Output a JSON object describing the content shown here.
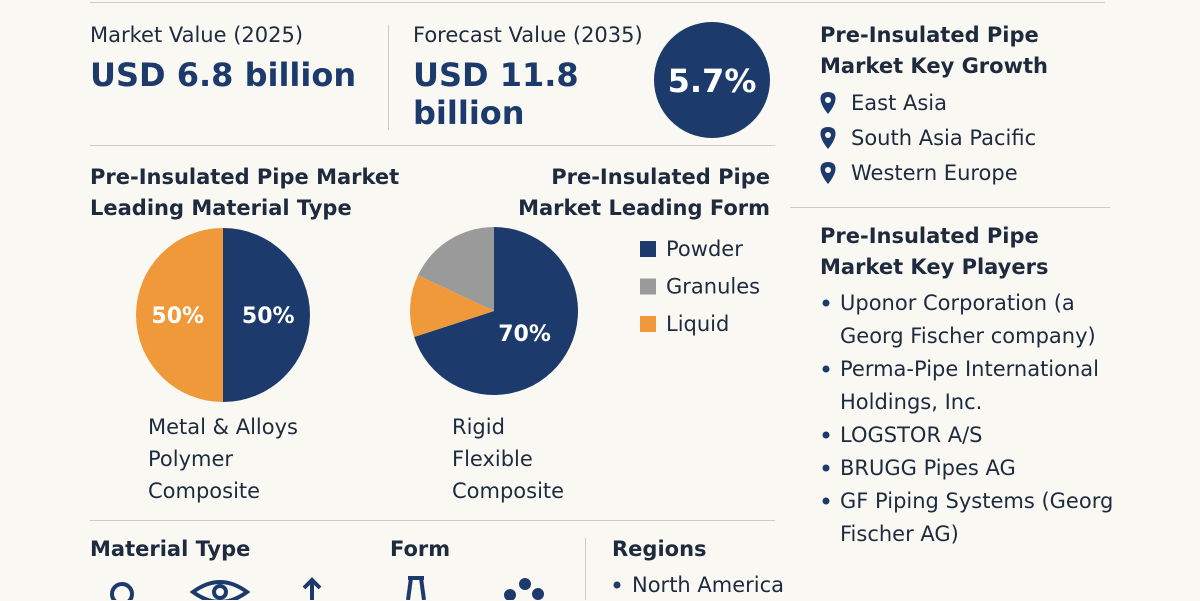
{
  "market_value": {
    "label": "Market Value (2025)",
    "value": "USD 6.8 billion"
  },
  "forecast_value": {
    "label": "Forecast Value (2035)",
    "value": "USD 11.8 billion"
  },
  "cagr": "5.7%",
  "key_growth": {
    "title": "Pre-Insulated Pipe Market Key Growth",
    "regions": [
      "East Asia",
      "South Asia Pacific",
      "Western Europe"
    ]
  },
  "key_players": {
    "title": "Pre-Insulated Pipe Market Key Players",
    "players": [
      "Uponor Corporation (a Georg Fischer company)",
      "Perma-Pipe International Holdings, Inc.",
      "LOGSTOR A/S",
      "BRUGG Pipes AG",
      "GF Piping Systems (Georg Fischer AG)"
    ]
  },
  "material_types": [
    "Metal & Alloys",
    "Polymer",
    "Composite"
  ],
  "form_types": [
    "Rigid",
    "Flexible",
    "Composite"
  ],
  "chart_data": [
    {
      "type": "pie",
      "title": "Pre-Insulated Pipe Market Leading Material Type",
      "values": [
        50,
        50
      ],
      "value_labels": [
        "50%",
        "50%"
      ],
      "colors": [
        "#1c3a6b",
        "#f0993a"
      ]
    },
    {
      "type": "pie",
      "title": "Pre-Insulated Pipe Market Leading Form",
      "categories": [
        "Powder",
        "Granules",
        "Liquid"
      ],
      "values": [
        70,
        18,
        12
      ],
      "value_labels": [
        "70%",
        null,
        null
      ],
      "colors": [
        "#1c3a6b",
        "#9a9a9a",
        "#f0993a"
      ]
    }
  ],
  "bottom": {
    "material_type": "Material Type",
    "form": "Form",
    "regions": "Regions",
    "region_items": [
      "North America"
    ]
  }
}
